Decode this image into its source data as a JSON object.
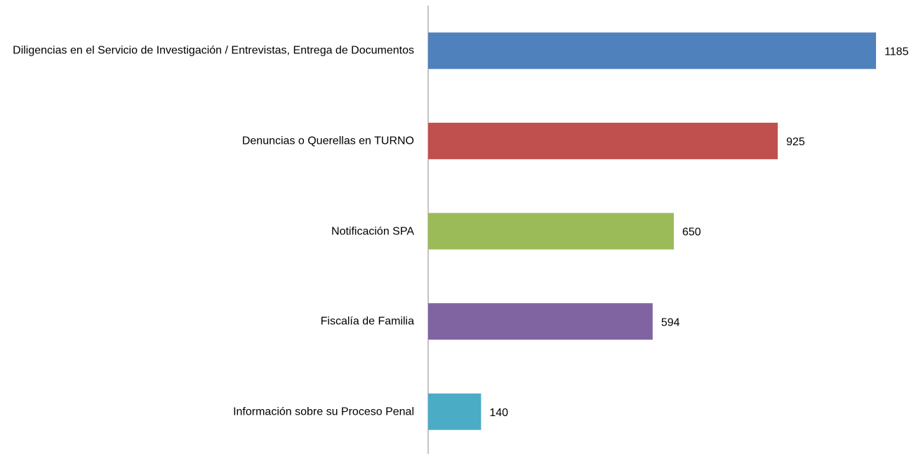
{
  "chart_data": {
    "type": "barh",
    "categories": [
      "Diligencias en el Servicio de Investigación / Entrevistas, Entrega de Documentos",
      "Denuncias o Querellas en TURNO",
      "Notificación SPA",
      "Fiscalía de Familia",
      "Información sobre su Proceso Penal"
    ],
    "values": [
      1185,
      925,
      650,
      594,
      140
    ],
    "colors": [
      "#4f81bd",
      "#c0504d",
      "#9bbb59",
      "#8064a2",
      "#4bacc6"
    ],
    "xlim": [
      0,
      1300
    ]
  }
}
